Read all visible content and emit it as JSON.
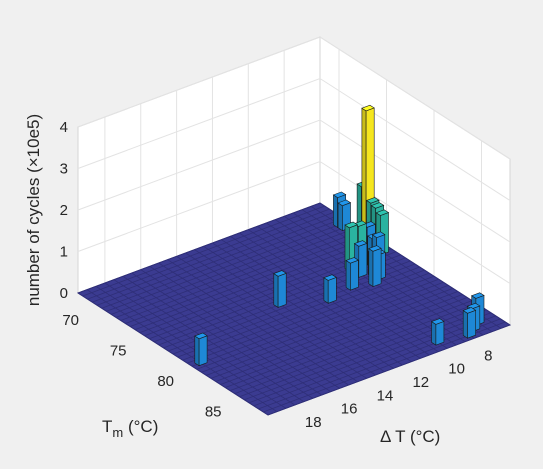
{
  "chart_data": {
    "type": "bar3",
    "title": "",
    "zlabel": "number of cycles (×10e5)",
    "xlabel_main": "T",
    "xlabel_sub": "m",
    "xlabel_unit": " (°C)",
    "ylabel": "Δ T (°C)",
    "z_ticks": [
      "0",
      "1",
      "2",
      "3",
      "4"
    ],
    "tm_ticks": [
      "70",
      "75",
      "80",
      "85"
    ],
    "dt_ticks": [
      "8",
      "10",
      "12",
      "14",
      "16",
      "18"
    ],
    "tm_range": [
      68,
      88
    ],
    "dt_range": [
      6,
      19.5
    ],
    "z_range": [
      0,
      4
    ],
    "grid": true,
    "colors": {
      "background": "#f0f0f0",
      "pane": "#ffffff",
      "grid": "#e3e3e3",
      "floor": "#3b3b91",
      "floor_line": "#2f2f78",
      "low": "#1e88d6",
      "mid": "#2ab3a0",
      "high": "#f5e61f"
    },
    "bars": [
      {
        "tm": 71,
        "dt": 6.5,
        "value": 0.72
      },
      {
        "tm": 71.5,
        "dt": 6.5,
        "value": 0.6
      },
      {
        "tm": 73.5,
        "dt": 6.5,
        "value": 1.35
      },
      {
        "tm": 74,
        "dt": 6.5,
        "value": 3.25
      },
      {
        "tm": 74.5,
        "dt": 6.5,
        "value": 1.1
      },
      {
        "tm": 75,
        "dt": 6.5,
        "value": 1.05
      },
      {
        "tm": 75.5,
        "dt": 6.5,
        "value": 0.95
      },
      {
        "tm": 76,
        "dt": 7,
        "value": 0.55
      },
      {
        "tm": 76,
        "dt": 7.5,
        "value": 0.9
      },
      {
        "tm": 76,
        "dt": 8,
        "value": 1.0
      },
      {
        "tm": 76,
        "dt": 8.5,
        "value": 1.05
      },
      {
        "tm": 76.5,
        "dt": 7.5,
        "value": 0.7
      },
      {
        "tm": 77,
        "dt": 7.5,
        "value": 0.8
      },
      {
        "tm": 77,
        "dt": 8.5,
        "value": 0.75
      },
      {
        "tm": 77.5,
        "dt": 8,
        "value": 0.55
      },
      {
        "tm": 78,
        "dt": 8,
        "value": 0.6
      },
      {
        "tm": 78.5,
        "dt": 8.5,
        "value": 0.85
      },
      {
        "tm": 78,
        "dt": 9.5,
        "value": 0.65
      },
      {
        "tm": 78.5,
        "dt": 11,
        "value": 0.55
      },
      {
        "tm": 86.5,
        "dt": 7,
        "value": 0.65
      },
      {
        "tm": 87,
        "dt": 7.5,
        "value": 0.55
      },
      {
        "tm": 87.5,
        "dt": 8,
        "value": 0.6
      },
      {
        "tm": 87,
        "dt": 9.5,
        "value": 0.5
      },
      {
        "tm": 77,
        "dt": 13,
        "value": 0.75
      },
      {
        "tm": 80,
        "dt": 19,
        "value": 0.65
      }
    ]
  }
}
